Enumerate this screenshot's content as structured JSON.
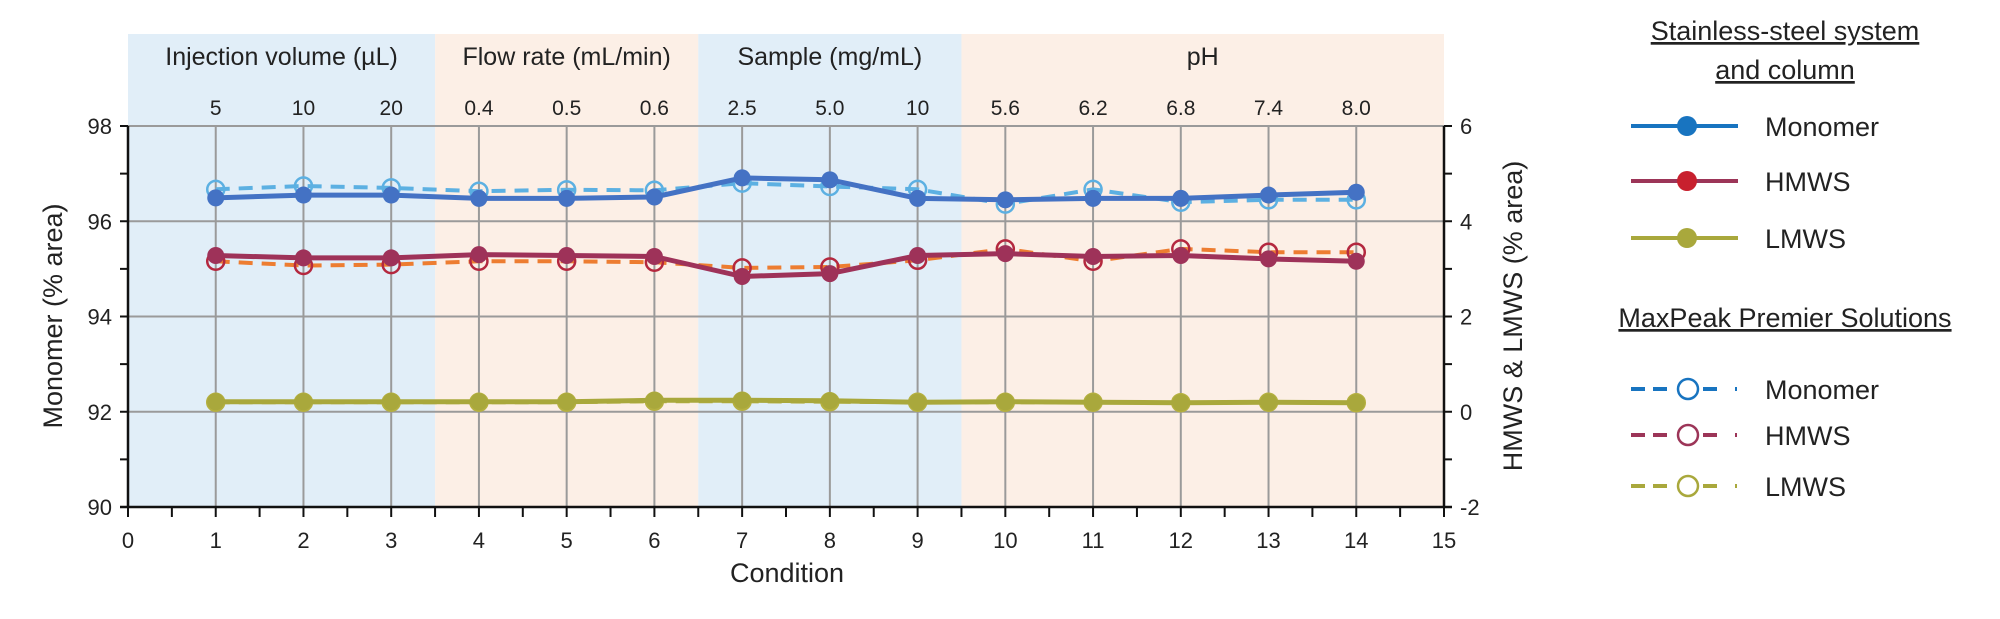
{
  "chart_data": {
    "type": "line",
    "xlabel": "Condition",
    "ylabel_left": "Monomer (% area)",
    "ylabel_right": "HMWS & LMWS (% area)",
    "xlim": [
      0,
      15
    ],
    "ylim_left": [
      90,
      98
    ],
    "ylim_right": [
      -2,
      6
    ],
    "x_ticks": [
      "0",
      "1",
      "2",
      "3",
      "4",
      "5",
      "6",
      "7",
      "8",
      "9",
      "10",
      "11",
      "12",
      "13",
      "14",
      "15"
    ],
    "y_left_ticks": [
      "90",
      "92",
      "94",
      "96",
      "98"
    ],
    "y_right_ticks": [
      "-2",
      "0",
      "2",
      "4",
      "6"
    ],
    "grid": true,
    "x": [
      1,
      2,
      3,
      4,
      5,
      6,
      7,
      8,
      9,
      10,
      11,
      12,
      13,
      14
    ],
    "bands": [
      {
        "title": "Injection volume (µL)",
        "from": 0,
        "to": 3.5,
        "color": "#e1eef8",
        "labels": [
          "5",
          "10",
          "20"
        ]
      },
      {
        "title": "Flow rate (mL/min)",
        "from": 3.5,
        "to": 6.5,
        "color": "#fcefe6",
        "labels": [
          "0.4",
          "0.5",
          "0.6"
        ]
      },
      {
        "title": "Sample (mg/mL)",
        "from": 6.5,
        "to": 9.5,
        "color": "#e1eef8",
        "labels": [
          "2.5",
          "5.0",
          "10"
        ]
      },
      {
        "title": "pH",
        "from": 9.5,
        "to": 15,
        "color": "#fcefe6",
        "labels": [
          "5.6",
          "6.2",
          "6.8",
          "7.4",
          "8.0"
        ]
      }
    ],
    "series": [
      {
        "name": "Monomer",
        "group": "Stainless-steel system and column",
        "axis": "left",
        "style": "solid",
        "line_color": "#4472c4",
        "marker_color": "#4472c4",
        "values": [
          96.49,
          96.55,
          96.55,
          96.48,
          96.48,
          96.51,
          96.91,
          96.87,
          96.48,
          96.45,
          96.48,
          96.48,
          96.55,
          96.61
        ]
      },
      {
        "name": "HMWS",
        "group": "Stainless-steel system and column",
        "axis": "right",
        "style": "solid",
        "line_color": "#9e3259",
        "marker_color": "#9e3259",
        "values": [
          3.28,
          3.23,
          3.23,
          3.3,
          3.28,
          3.26,
          2.84,
          2.9,
          3.28,
          3.32,
          3.26,
          3.28,
          3.21,
          3.16
        ]
      },
      {
        "name": "LMWS",
        "group": "Stainless-steel system and column",
        "axis": "right",
        "style": "solid",
        "line_color": "#a9a83c",
        "marker_color": "#a9a83c",
        "values": [
          0.21,
          0.21,
          0.21,
          0.21,
          0.21,
          0.24,
          0.24,
          0.23,
          0.2,
          0.21,
          0.2,
          0.19,
          0.2,
          0.19
        ]
      },
      {
        "name": "Monomer",
        "group": "MaxPeak Premier Solutions",
        "axis": "left",
        "style": "dashed",
        "line_color": "#5cb0e2",
        "marker_color": "#5cb0e2",
        "values": [
          96.67,
          96.74,
          96.7,
          96.63,
          96.66,
          96.65,
          96.8,
          96.73,
          96.67,
          96.36,
          96.67,
          96.4,
          96.45,
          96.45
        ]
      },
      {
        "name": "HMWS",
        "group": "MaxPeak Premier Solutions",
        "axis": "right",
        "style": "dashed",
        "line_color": "#ed7d31",
        "marker_color": "#b4283f",
        "values": [
          3.16,
          3.07,
          3.09,
          3.16,
          3.16,
          3.14,
          3.02,
          3.04,
          3.18,
          3.42,
          3.16,
          3.42,
          3.35,
          3.35
        ]
      },
      {
        "name": "LMWS",
        "group": "MaxPeak Premier Solutions",
        "axis": "right",
        "style": "dashed",
        "line_color": "#b5b040",
        "marker_color": "#b5b040",
        "values": [
          0.2,
          0.2,
          0.2,
          0.2,
          0.2,
          0.22,
          0.22,
          0.21,
          0.2,
          0.2,
          0.2,
          0.19,
          0.2,
          0.19
        ]
      }
    ]
  },
  "legend": {
    "group1_title_line1": "Stainless-steel system",
    "group1_title_line2": "and column",
    "group2_title": "MaxPeak Premier Solutions",
    "items1": [
      {
        "label": "Monomer",
        "line_color": "#1874c0",
        "marker_color": "#1874c0"
      },
      {
        "label": "HMWS",
        "line_color": "#9c3558",
        "marker_color": "#c8202e"
      },
      {
        "label": "LMWS",
        "line_color": "#a9a83c",
        "marker_color": "#a9a83c"
      }
    ],
    "items2": [
      {
        "label": "Monomer",
        "line_color": "#1874c0",
        "marker_color": "#1874c0"
      },
      {
        "label": "HMWS",
        "line_color": "#9c3558",
        "marker_color": "#9c3558"
      },
      {
        "label": "LMWS",
        "line_color": "#a9a83c",
        "marker_color": "#a9a83c"
      }
    ]
  }
}
